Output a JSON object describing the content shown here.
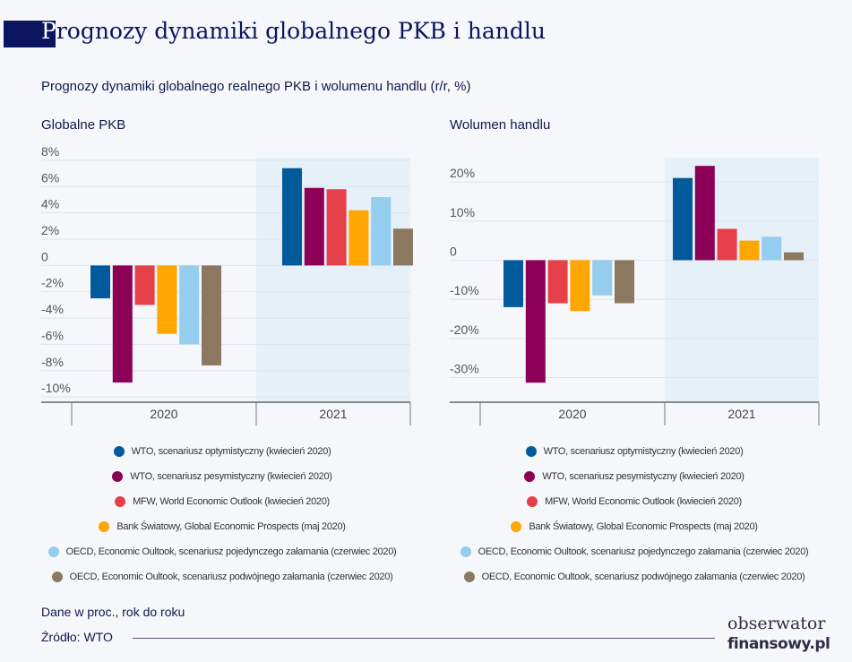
{
  "title": {
    "first": "P",
    "rest": "rognozy dynamiki globalnego PKB i handlu"
  },
  "subtitle": "Prognozy dynamiki globalnego realnego PKB i wolumenu handlu (r/r, %)",
  "colors": [
    "#005a9c",
    "#8c0057",
    "#e5404a",
    "#ffa600",
    "#94cdee",
    "#8c7860"
  ],
  "legend": [
    "WTO, scenariusz optymistyczny (kwiecień 2020)",
    "WTO, scenariusz pesymistyczny (kwiecień 2020)",
    "MFW, World Economic Outlook (kwiecień 2020)",
    "Bank Światowy, Global Economic Prospects (maj 2020)",
    "OECD, Economic Oultook, scenariusz pojedynczego załamania (czerwiec 2020)",
    "OECD, Economic Oultook, scenariusz podwójnego załamania (czerwiec 2020)"
  ],
  "chart_data": [
    {
      "type": "bar",
      "title": "Globalne PKB",
      "categories": [
        "2020",
        "2021"
      ],
      "yticks": [
        "8%",
        "6%",
        "4%",
        "2%",
        "0",
        "-2%",
        "-4%",
        "-6%",
        "-8%",
        "-10%"
      ],
      "ytick_values": [
        8,
        6,
        4,
        2,
        0,
        -2,
        -4,
        -6,
        -8,
        -10
      ],
      "ylim": [
        -10.4,
        8.2
      ],
      "grid": true,
      "highlighted_category": "2021",
      "legend_placement": "bottom",
      "series": [
        {
          "name": "WTO, scenariusz optymistyczny (kwiecień 2020)",
          "values": [
            -2.5,
            7.4
          ]
        },
        {
          "name": "WTO, scenariusz pesymistyczny (kwiecień 2020)",
          "values": [
            -8.9,
            5.9
          ]
        },
        {
          "name": "MFW, World Economic Outlook (kwiecień 2020)",
          "values": [
            -3.0,
            5.8
          ]
        },
        {
          "name": "Bank Światowy, Global Economic Prospects (maj 2020)",
          "values": [
            -5.2,
            4.2
          ]
        },
        {
          "name": "OECD, Economic Oultook, scenariusz pojedynczego załamania (czerwiec 2020)",
          "values": [
            -6.0,
            5.2
          ]
        },
        {
          "name": "OECD, Economic Oultook, scenariusz podwójnego załamania (czerwiec 2020)",
          "values": [
            -7.6,
            2.8
          ]
        }
      ]
    },
    {
      "type": "bar",
      "title": "Wolumen handlu",
      "categories": [
        "2020",
        "2021"
      ],
      "yticks": [
        "20%",
        "10%",
        "0",
        "-10%",
        "-20%",
        "-30%"
      ],
      "ytick_values": [
        20,
        10,
        0,
        -10,
        -20,
        -30
      ],
      "ylim": [
        -36.3,
        26.2
      ],
      "grid": true,
      "highlighted_category": "2021",
      "legend_placement": "bottom",
      "series": [
        {
          "name": "WTO, scenariusz optymistyczny (kwiecień 2020)",
          "values": [
            -12.0,
            21.0
          ]
        },
        {
          "name": "WTO, scenariusz pesymistyczny (kwiecień 2020)",
          "values": [
            -31.3,
            24.1
          ]
        },
        {
          "name": "MFW, World Economic Outlook (kwiecień 2020)",
          "values": [
            -11.0,
            8.0
          ]
        },
        {
          "name": "Bank Światowy, Global Economic Prospects (maj 2020)",
          "values": [
            -13.0,
            5.0
          ]
        },
        {
          "name": "OECD, Economic Oultook, scenariusz pojedynczego załamania (czerwiec 2020)",
          "values": [
            -9.0,
            6.0
          ]
        },
        {
          "name": "OECD, Economic Oultook, scenariusz podwójnego załamania (czerwiec 2020)",
          "values": [
            -11.0,
            2.0
          ]
        }
      ]
    }
  ],
  "footer": {
    "note": "Dane w proc., rok do roku",
    "source": "Źródło: WTO"
  },
  "logo": {
    "line1": "obserwator",
    "line2": "finansowy.pl"
  }
}
